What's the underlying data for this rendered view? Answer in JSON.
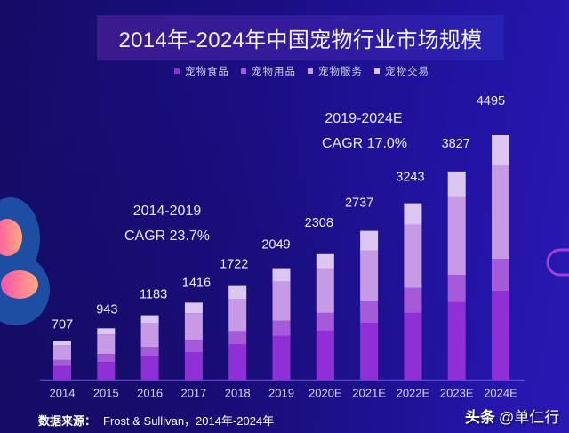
{
  "chart_data": {
    "type": "bar",
    "stacked": true,
    "title": "2014年-2024年中国宠物行业市场规模",
    "categories": [
      "2014",
      "2015",
      "2016",
      "2017",
      "2018",
      "2019",
      "2020E",
      "2021E",
      "2022E",
      "2023E",
      "2024E"
    ],
    "series": [
      {
        "name": "宠物食品",
        "color": "#8f2fd6",
        "values": [
          247,
          325,
          438,
          505,
          649,
          803,
          900,
          1043,
          1228,
          1423,
          1635
        ]
      },
      {
        "name": "宠物用品",
        "color": "#a45ad9",
        "values": [
          115,
          146,
          162,
          228,
          244,
          279,
          327,
          407,
          459,
          507,
          588
        ]
      },
      {
        "name": "宠物服务",
        "color": "#c79ae6",
        "values": [
          263,
          358,
          437,
          488,
          585,
          721,
          818,
          929,
          1163,
          1423,
          1716
        ]
      },
      {
        "name": "宠物交易",
        "color": "#dcc7f2",
        "values": [
          82,
          114,
          146,
          195,
          244,
          246,
          263,
          358,
          393,
          474,
          556
        ]
      }
    ],
    "totals": [
      "707",
      "943",
      "1183",
      "1416",
      "1722",
      "2049",
      "2308",
      "2737",
      "3243",
      "3827",
      "4495"
    ],
    "xlabel": "",
    "ylabel": "",
    "ylim": [
      0,
      4500
    ],
    "grid": false,
    "legend_position": "top",
    "annotations": [
      {
        "period": "2014-2019",
        "text": "CAGR 23.7%"
      },
      {
        "period": "2019-2024E",
        "text": "CAGR 17.0%"
      }
    ]
  },
  "footer": {
    "source_label": "数据来源：",
    "source_value": "Frost & Sullivan，2014年-2024年"
  },
  "watermark": {
    "brand": "头条",
    "handle": "@单仁行"
  },
  "colors": {
    "background": "#1a0e82",
    "axis": "#5e44cc",
    "decor_blue": "#1d4ea3",
    "decor_pink": "#ff6fa0",
    "decor_outline": "#a040d8"
  }
}
